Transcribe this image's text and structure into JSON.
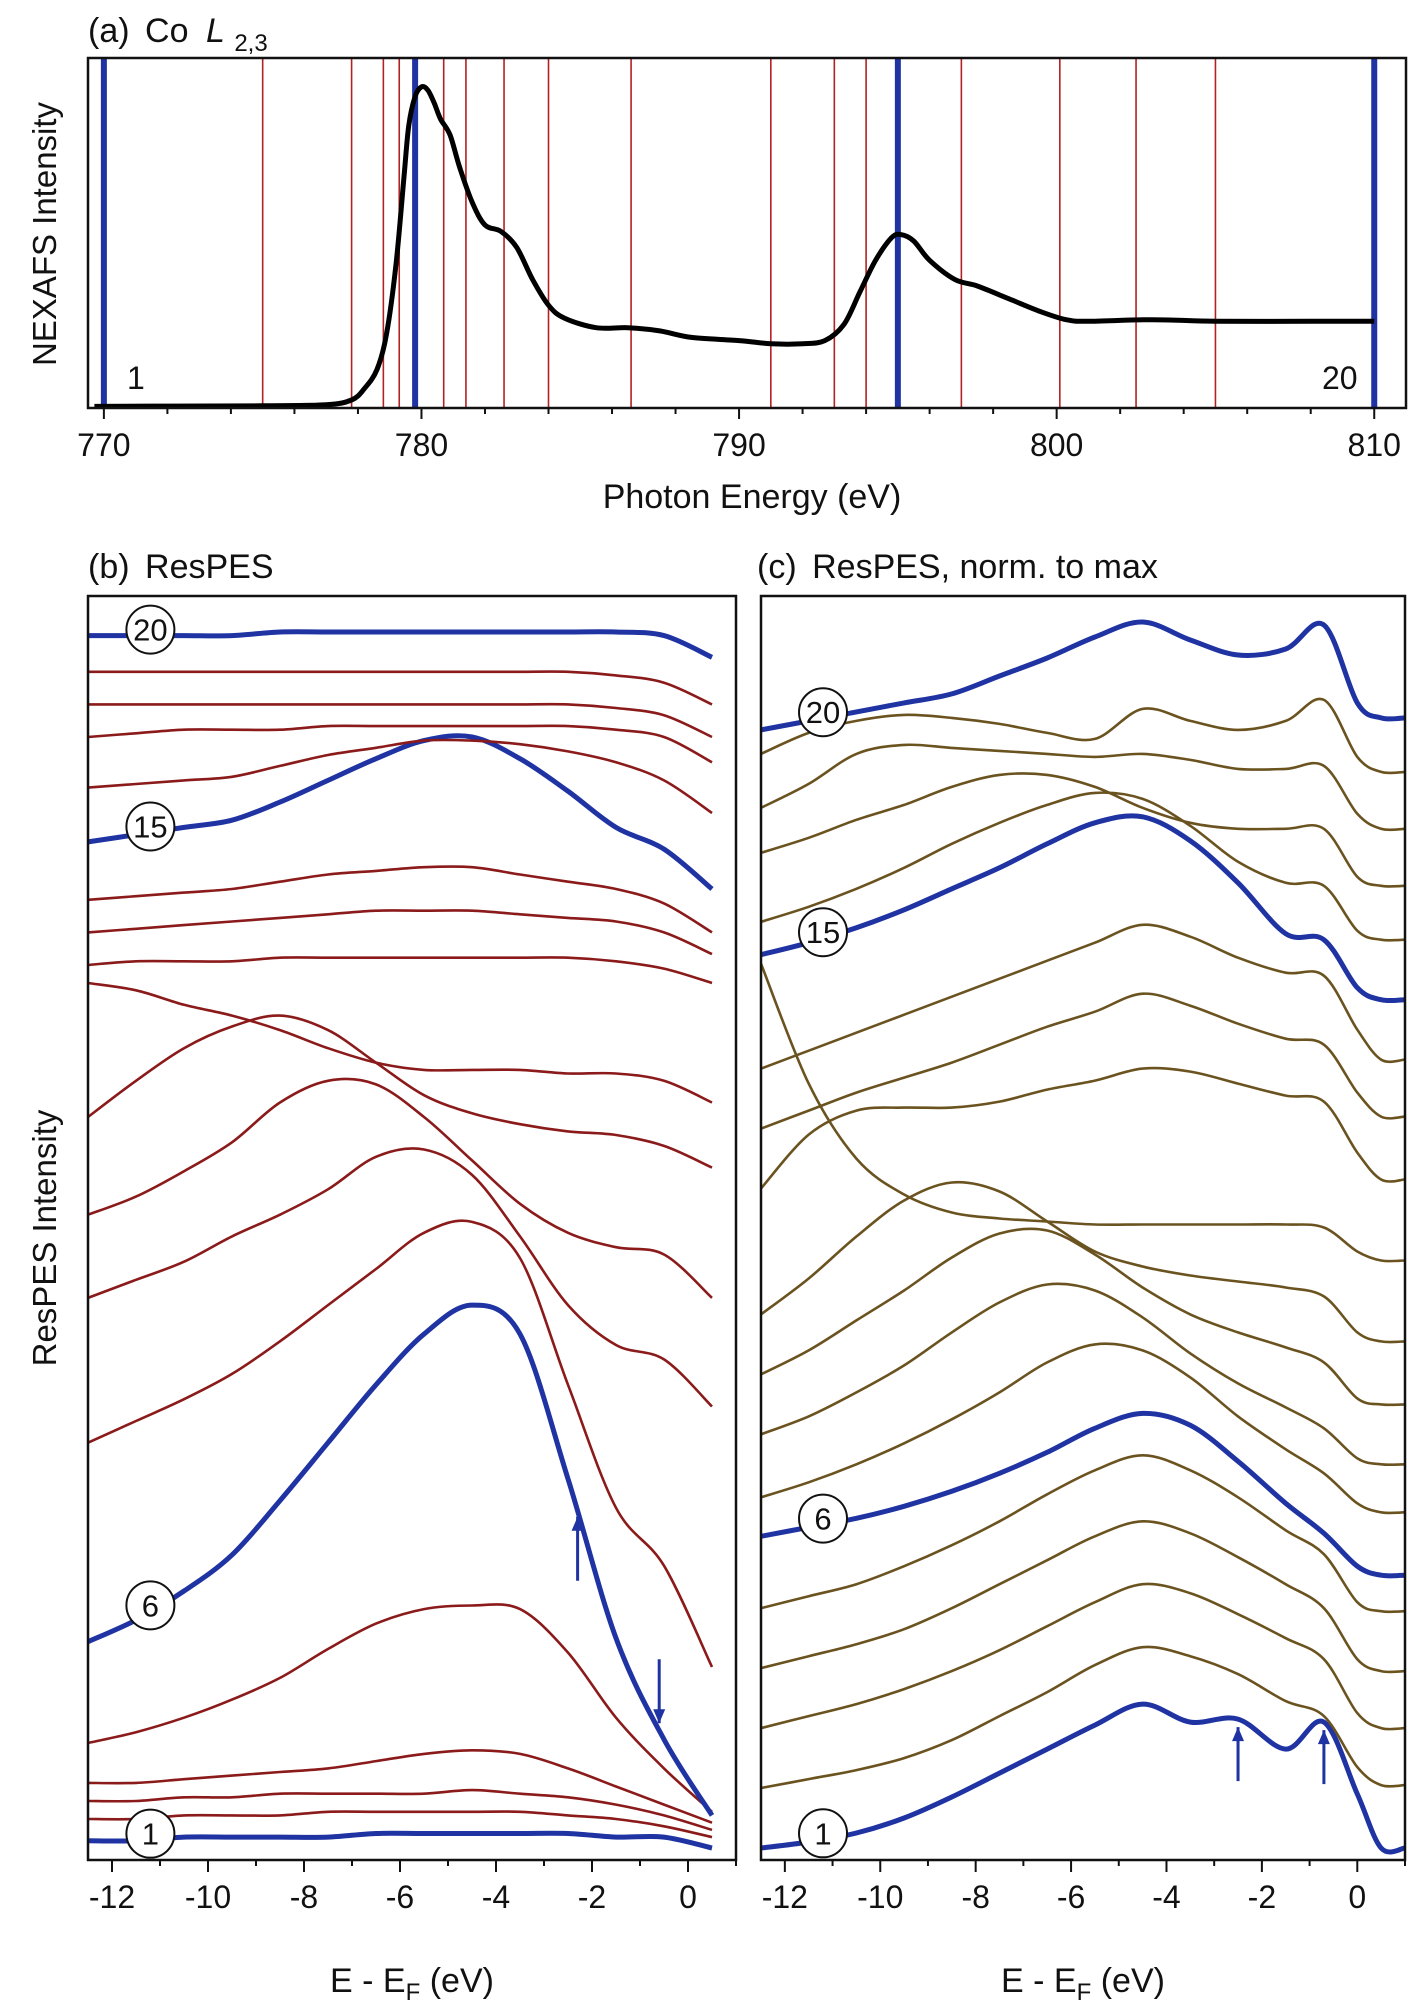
{
  "chart_data": [
    {
      "type": "line",
      "panel_label": "(a)",
      "title": "Co",
      "title_italic": "L",
      "title_subscript": "2,3",
      "xlabel": "Photon Energy (eV)",
      "ylabel": "NEXAFS Intensity",
      "xlim": [
        769.5,
        811.0
      ],
      "ylim": [
        0,
        1.09
      ],
      "xticks": [
        770,
        780,
        790,
        800,
        810
      ],
      "grid": false,
      "legend": "none",
      "series": [
        {
          "x": [
            769.7,
            772,
            775,
            777,
            777.8,
            778.2,
            778.6,
            778.9,
            779.2,
            779.45,
            779.6,
            779.8,
            780.0,
            780.2,
            780.4,
            780.6,
            780.9,
            781.2,
            781.6,
            782.0,
            782.5,
            783.0,
            783.5,
            784.0,
            784.5,
            785.5,
            786.5,
            787.5,
            788.5,
            790,
            791,
            792,
            792.7,
            793.3,
            793.8,
            794.3,
            794.8,
            795.1,
            795.5,
            796.0,
            796.8,
            797.5,
            798.5,
            799.5,
            800.3,
            801,
            803,
            805,
            808,
            810
          ],
          "y": [
            0.005,
            0.006,
            0.007,
            0.01,
            0.025,
            0.06,
            0.12,
            0.23,
            0.45,
            0.72,
            0.88,
            0.97,
            1.0,
            0.99,
            0.95,
            0.9,
            0.85,
            0.75,
            0.64,
            0.57,
            0.55,
            0.5,
            0.4,
            0.32,
            0.28,
            0.25,
            0.25,
            0.24,
            0.22,
            0.21,
            0.2,
            0.2,
            0.21,
            0.26,
            0.36,
            0.46,
            0.53,
            0.54,
            0.52,
            0.46,
            0.4,
            0.38,
            0.34,
            0.3,
            0.275,
            0.27,
            0.275,
            0.27,
            0.27,
            0.27
          ],
          "color": "#000000"
        }
      ],
      "excitation_energies": [
        770.0,
        775.0,
        777.8,
        778.8,
        779.3,
        779.8,
        780.7,
        781.4,
        782.6,
        784.0,
        786.6,
        791.0,
        793.0,
        794.0,
        795.0,
        797.0,
        800.1,
        802.5,
        805.0,
        810.0
      ],
      "highlighted": [
        1,
        6,
        15,
        20
      ],
      "highlight_color": "#1f33a3",
      "line_color": "#b22222",
      "annotations": [
        "1",
        "20"
      ]
    },
    {
      "type": "line",
      "panel_label": "(b)",
      "title": "ResPES",
      "xlabel_main": "E - E",
      "xlabel_sub": "F",
      "xlabel_unit": " (eV)",
      "ylabel": "ResPES Intensity",
      "xlim": [
        -12.5,
        1.0
      ],
      "xticks": [
        -12,
        -10,
        -8,
        -6,
        -4,
        -2,
        0
      ],
      "xtick_labels": [
        "-12",
        "-10",
        "-8",
        "-6",
        "-4",
        "-2",
        "0"
      ],
      "grid": false,
      "legend": "none",
      "trace_color": "#8b1a1a",
      "highlight_color": "#1f33a3",
      "annotations": [
        "1",
        "6",
        "15",
        "20"
      ],
      "arrows": [
        {
          "x": -2.3,
          "direction": "up"
        },
        {
          "x": -0.6,
          "direction": "down"
        }
      ],
      "x": [
        -12.5,
        -11.5,
        -10.5,
        -9.5,
        -8.5,
        -7.5,
        -6.5,
        -5.5,
        -4.5,
        -3.5,
        -2.5,
        -1.5,
        -0.5,
        0.5
      ],
      "series": [
        {
          "name": "1",
          "values": [
            0.0,
            0.0,
            0.01,
            0.01,
            0.01,
            0.01,
            0.02,
            0.02,
            0.02,
            0.02,
            0.02,
            0.01,
            0.01,
            -0.02
          ],
          "highlight": true
        },
        {
          "name": "2",
          "values": [
            0.06,
            0.06,
            0.07,
            0.07,
            0.07,
            0.08,
            0.08,
            0.08,
            0.08,
            0.08,
            0.07,
            0.06,
            0.04,
            0.01
          ]
        },
        {
          "name": "3",
          "values": [
            0.11,
            0.11,
            0.12,
            0.12,
            0.13,
            0.13,
            0.13,
            0.13,
            0.14,
            0.13,
            0.12,
            0.1,
            0.07,
            0.03
          ]
        },
        {
          "name": "4",
          "values": [
            0.16,
            0.16,
            0.17,
            0.18,
            0.19,
            0.2,
            0.22,
            0.24,
            0.25,
            0.24,
            0.2,
            0.15,
            0.1,
            0.05
          ]
        },
        {
          "name": "5",
          "values": [
            0.27,
            0.3,
            0.34,
            0.39,
            0.45,
            0.53,
            0.6,
            0.64,
            0.65,
            0.64,
            0.52,
            0.34,
            0.2,
            0.08
          ]
        },
        {
          "name": "6",
          "values": [
            0.55,
            0.61,
            0.69,
            0.79,
            0.94,
            1.1,
            1.26,
            1.4,
            1.48,
            1.4,
            1.0,
            0.56,
            0.28,
            0.07
          ],
          "highlight": true
        },
        {
          "name": "7",
          "values": [
            1.1,
            1.16,
            1.22,
            1.29,
            1.38,
            1.48,
            1.58,
            1.68,
            1.71,
            1.61,
            1.26,
            0.92,
            0.76,
            0.48
          ]
        },
        {
          "name": "8",
          "values": [
            1.5,
            1.55,
            1.6,
            1.67,
            1.73,
            1.8,
            1.89,
            1.91,
            1.84,
            1.67,
            1.48,
            1.37,
            1.33,
            1.2
          ]
        },
        {
          "name": "9",
          "values": [
            1.73,
            1.78,
            1.85,
            1.93,
            2.04,
            2.1,
            2.09,
            2.0,
            1.88,
            1.76,
            1.68,
            1.64,
            1.62,
            1.5
          ]
        },
        {
          "name": "10",
          "values": [
            2.0,
            2.1,
            2.19,
            2.25,
            2.28,
            2.24,
            2.15,
            2.06,
            2.01,
            1.98,
            1.96,
            1.95,
            1.92,
            1.86
          ]
        },
        {
          "name": "11",
          "values": [
            2.37,
            2.35,
            2.31,
            2.28,
            2.24,
            2.19,
            2.15,
            2.13,
            2.13,
            2.13,
            2.12,
            2.12,
            2.1,
            2.04
          ]
        },
        {
          "name": "12",
          "values": [
            2.42,
            2.43,
            2.43,
            2.43,
            2.44,
            2.44,
            2.44,
            2.44,
            2.44,
            2.44,
            2.44,
            2.43,
            2.41,
            2.37
          ]
        },
        {
          "name": "13",
          "values": [
            2.51,
            2.52,
            2.53,
            2.54,
            2.55,
            2.56,
            2.57,
            2.57,
            2.57,
            2.56,
            2.55,
            2.54,
            2.51,
            2.45
          ]
        },
        {
          "name": "14",
          "values": [
            2.6,
            2.61,
            2.62,
            2.63,
            2.65,
            2.67,
            2.68,
            2.69,
            2.69,
            2.67,
            2.65,
            2.63,
            2.59,
            2.51
          ]
        },
        {
          "name": "15",
          "values": [
            2.76,
            2.78,
            2.8,
            2.82,
            2.87,
            2.93,
            2.99,
            3.04,
            3.05,
            2.99,
            2.9,
            2.8,
            2.74,
            2.63
          ],
          "highlight": true
        },
        {
          "name": "16",
          "values": [
            2.91,
            2.92,
            2.93,
            2.94,
            2.97,
            3.0,
            3.02,
            3.04,
            3.04,
            3.03,
            3.01,
            2.98,
            2.93,
            2.84
          ]
        },
        {
          "name": "17",
          "values": [
            3.05,
            3.06,
            3.07,
            3.07,
            3.07,
            3.08,
            3.08,
            3.08,
            3.08,
            3.08,
            3.08,
            3.07,
            3.05,
            2.98
          ]
        },
        {
          "name": "18",
          "values": [
            3.14,
            3.14,
            3.14,
            3.14,
            3.14,
            3.14,
            3.14,
            3.14,
            3.14,
            3.14,
            3.14,
            3.13,
            3.11,
            3.05
          ]
        },
        {
          "name": "19",
          "values": [
            3.23,
            3.23,
            3.23,
            3.23,
            3.23,
            3.23,
            3.23,
            3.23,
            3.23,
            3.23,
            3.23,
            3.22,
            3.2,
            3.14
          ]
        },
        {
          "name": "20",
          "values": [
            3.33,
            3.33,
            3.33,
            3.33,
            3.34,
            3.34,
            3.34,
            3.34,
            3.34,
            3.34,
            3.34,
            3.34,
            3.33,
            3.27
          ],
          "highlight": true
        }
      ]
    },
    {
      "type": "line",
      "panel_label": "(c)",
      "title": "ResPES, norm. to max",
      "xlabel_main": "E - E",
      "xlabel_sub": "F",
      "xlabel_unit": " (eV)",
      "xlim": [
        -12.5,
        1.0
      ],
      "xticks": [
        -12,
        -10,
        -8,
        -6,
        -4,
        -2,
        0
      ],
      "xtick_labels": [
        "-12",
        "-10",
        "-8",
        "-6",
        "-4",
        "-2",
        "0"
      ],
      "grid": false,
      "legend": "none",
      "trace_color": "#6b5320",
      "highlight_color": "#1f33a3",
      "annotations": [
        "1",
        "6",
        "15",
        "20"
      ],
      "arrows": [
        {
          "x": -2.5,
          "direction": "up"
        },
        {
          "x": -0.7,
          "direction": "up"
        }
      ],
      "x": [
        -12.5,
        -11.5,
        -10.5,
        -9.5,
        -8.5,
        -7.5,
        -6.5,
        -5.5,
        -4.5,
        -3.5,
        -2.5,
        -1.5,
        -0.7,
        0.0,
        0.5,
        1.0
      ],
      "series": [
        {
          "name": "1",
          "values": [
            0.0,
            0.02,
            0.05,
            0.1,
            0.17,
            0.25,
            0.33,
            0.41,
            0.48,
            0.42,
            0.43,
            0.33,
            0.42,
            0.18,
            0.0,
            0.0
          ],
          "highlight": true
        },
        {
          "name": "2",
          "values": [
            0.2,
            0.23,
            0.26,
            0.3,
            0.36,
            0.44,
            0.52,
            0.61,
            0.67,
            0.64,
            0.58,
            0.49,
            0.44,
            0.27,
            0.21,
            0.21
          ]
        },
        {
          "name": "3",
          "values": [
            0.4,
            0.44,
            0.48,
            0.53,
            0.59,
            0.66,
            0.74,
            0.82,
            0.88,
            0.85,
            0.78,
            0.7,
            0.63,
            0.45,
            0.4,
            0.4
          ]
        },
        {
          "name": "4",
          "values": [
            0.6,
            0.64,
            0.68,
            0.73,
            0.8,
            0.88,
            0.96,
            1.04,
            1.09,
            1.05,
            0.97,
            0.88,
            0.8,
            0.63,
            0.59,
            0.59
          ]
        },
        {
          "name": "5",
          "values": [
            0.8,
            0.84,
            0.88,
            0.94,
            1.01,
            1.09,
            1.18,
            1.26,
            1.31,
            1.26,
            1.17,
            1.06,
            0.98,
            0.82,
            0.79,
            0.79
          ]
        },
        {
          "name": "6",
          "values": [
            1.04,
            1.07,
            1.1,
            1.14,
            1.19,
            1.25,
            1.32,
            1.4,
            1.45,
            1.41,
            1.29,
            1.15,
            1.05,
            0.94,
            0.91,
            0.91
          ],
          "highlight": true
        },
        {
          "name": "7",
          "values": [
            1.17,
            1.22,
            1.28,
            1.35,
            1.43,
            1.52,
            1.62,
            1.68,
            1.66,
            1.57,
            1.44,
            1.33,
            1.25,
            1.15,
            1.12,
            1.12
          ]
        },
        {
          "name": "8",
          "values": [
            1.38,
            1.44,
            1.52,
            1.61,
            1.72,
            1.82,
            1.88,
            1.86,
            1.77,
            1.65,
            1.55,
            1.47,
            1.4,
            1.3,
            1.28,
            1.28
          ]
        },
        {
          "name": "9",
          "values": [
            1.58,
            1.66,
            1.76,
            1.86,
            1.97,
            2.05,
            2.06,
            1.98,
            1.87,
            1.78,
            1.72,
            1.67,
            1.62,
            1.5,
            1.48,
            1.48
          ]
        },
        {
          "name": "10",
          "values": [
            1.78,
            1.9,
            2.04,
            2.16,
            2.22,
            2.19,
            2.09,
            1.99,
            1.94,
            1.91,
            1.89,
            1.87,
            1.84,
            1.72,
            1.69,
            1.69
          ]
        },
        {
          "name": "11",
          "values": [
            2.95,
            2.55,
            2.3,
            2.18,
            2.12,
            2.1,
            2.09,
            2.08,
            2.08,
            2.08,
            2.08,
            2.08,
            2.07,
            1.99,
            1.96,
            1.96
          ]
        },
        {
          "name": "12",
          "values": [
            2.2,
            2.38,
            2.46,
            2.47,
            2.47,
            2.49,
            2.53,
            2.56,
            2.6,
            2.59,
            2.55,
            2.51,
            2.49,
            2.32,
            2.23,
            2.23
          ]
        },
        {
          "name": "13",
          "values": [
            2.4,
            2.46,
            2.52,
            2.57,
            2.62,
            2.68,
            2.74,
            2.79,
            2.85,
            2.81,
            2.75,
            2.7,
            2.68,
            2.52,
            2.44,
            2.44
          ]
        },
        {
          "name": "14",
          "values": [
            2.6,
            2.66,
            2.72,
            2.78,
            2.84,
            2.9,
            2.96,
            3.02,
            3.08,
            3.04,
            2.97,
            2.92,
            2.91,
            2.73,
            2.63,
            2.63
          ]
        },
        {
          "name": "15",
          "values": [
            2.98,
            3.02,
            3.07,
            3.13,
            3.2,
            3.27,
            3.35,
            3.42,
            3.44,
            3.36,
            3.22,
            3.05,
            3.03,
            2.87,
            2.83,
            2.83
          ],
          "highlight": true
        },
        {
          "name": "16",
          "values": [
            3.09,
            3.14,
            3.2,
            3.27,
            3.35,
            3.42,
            3.48,
            3.52,
            3.5,
            3.41,
            3.29,
            3.22,
            3.21,
            3.06,
            3.03,
            3.03
          ]
        },
        {
          "name": "17",
          "values": [
            3.32,
            3.37,
            3.43,
            3.48,
            3.54,
            3.58,
            3.58,
            3.54,
            3.47,
            3.42,
            3.4,
            3.4,
            3.4,
            3.24,
            3.21,
            3.21
          ]
        },
        {
          "name": "18",
          "values": [
            3.47,
            3.55,
            3.65,
            3.68,
            3.67,
            3.66,
            3.65,
            3.64,
            3.65,
            3.63,
            3.6,
            3.6,
            3.61,
            3.45,
            3.4,
            3.4
          ]
        },
        {
          "name": "19",
          "values": [
            3.65,
            3.72,
            3.76,
            3.78,
            3.77,
            3.75,
            3.72,
            3.7,
            3.8,
            3.76,
            3.73,
            3.76,
            3.83,
            3.64,
            3.59,
            3.59
          ]
        },
        {
          "name": "20",
          "values": [
            3.73,
            3.76,
            3.79,
            3.82,
            3.85,
            3.91,
            3.97,
            4.04,
            4.09,
            4.03,
            3.98,
            4.0,
            4.08,
            3.82,
            3.77,
            3.77
          ],
          "highlight": true
        }
      ]
    }
  ]
}
